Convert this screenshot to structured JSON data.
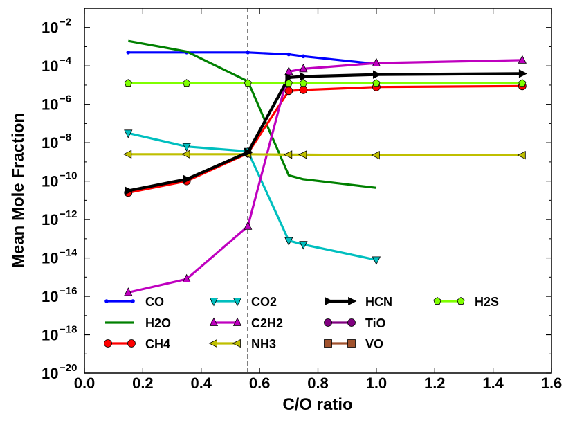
{
  "chart_data": {
    "type": "line",
    "title": "",
    "xlabel": "C/O ratio",
    "ylabel": "Mean Mole Fraction",
    "x_scale": "linear",
    "y_scale": "log",
    "xlim": [
      0.0,
      1.6
    ],
    "ylim_log10": [
      -20,
      -1
    ],
    "x_ticks": [
      0.0,
      0.2,
      0.4,
      0.6,
      0.8,
      1.0,
      1.2,
      1.4,
      1.6
    ],
    "x_tick_labels": [
      "0.0",
      "0.2",
      "0.4",
      "0.6",
      "0.8",
      "1.0",
      "1.2",
      "1.4",
      "1.6"
    ],
    "y_ticks_log10": [
      -20,
      -18,
      -16,
      -14,
      -12,
      -10,
      -8,
      -6,
      -4,
      -2
    ],
    "y_tick_labels": [
      {
        "base": "10",
        "exp": "−20"
      },
      {
        "base": "10",
        "exp": "−18"
      },
      {
        "base": "10",
        "exp": "−16"
      },
      {
        "base": "10",
        "exp": "−14"
      },
      {
        "base": "10",
        "exp": "−12"
      },
      {
        "base": "10",
        "exp": "−10"
      },
      {
        "base": "10",
        "exp": "−8"
      },
      {
        "base": "10",
        "exp": "−6"
      },
      {
        "base": "10",
        "exp": "−4"
      },
      {
        "base": "10",
        "exp": "−2"
      }
    ],
    "reference_line": {
      "x": 0.56,
      "style": "dashed",
      "color": "#000000"
    },
    "legend_placement": "lower-center",
    "series": [
      {
        "name": "CO",
        "color": "#0000ff",
        "marker": "dot",
        "x": [
          0.15,
          0.35,
          0.56,
          0.7,
          0.75,
          1.0
        ],
        "log10_y": [
          -3.3,
          -3.3,
          -3.3,
          -3.4,
          -3.5,
          -3.9
        ]
      },
      {
        "name": "H2O",
        "color": "#008000",
        "marker": "none",
        "x": [
          0.15,
          0.35,
          0.56,
          0.7,
          0.75,
          1.0
        ],
        "log10_y": [
          -2.7,
          -3.25,
          -4.8,
          -9.7,
          -9.9,
          -10.35
        ]
      },
      {
        "name": "CH4",
        "color": "#ff0000",
        "marker": "circle",
        "x": [
          0.15,
          0.35,
          0.56,
          0.7,
          0.75,
          1.0,
          1.5
        ],
        "log10_y": [
          -10.6,
          -10.0,
          -8.55,
          -5.3,
          -5.25,
          -5.1,
          -5.05
        ]
      },
      {
        "name": "CO2",
        "color": "#00bfbf",
        "marker": "triangle-down",
        "x": [
          0.15,
          0.35,
          0.56,
          0.7,
          0.75,
          1.0
        ],
        "log10_y": [
          -7.5,
          -8.2,
          -8.45,
          -13.1,
          -13.3,
          -14.1
        ]
      },
      {
        "name": "C2H2",
        "color": "#bf00bf",
        "marker": "triangle-up",
        "x": [
          0.15,
          0.35,
          0.56,
          0.7,
          0.75,
          1.0,
          1.5
        ],
        "log10_y": [
          -15.8,
          -15.1,
          -12.35,
          -4.3,
          -4.15,
          -3.85,
          -3.7
        ]
      },
      {
        "name": "NH3",
        "color": "#bfbf00",
        "marker": "triangle-left",
        "x": [
          0.15,
          0.35,
          0.56,
          0.7,
          0.75,
          1.0,
          1.5
        ],
        "log10_y": [
          -8.6,
          -8.6,
          -8.6,
          -8.62,
          -8.62,
          -8.65,
          -8.65
        ]
      },
      {
        "name": "HCN",
        "color": "#000000",
        "marker": "triangle-right",
        "x": [
          0.15,
          0.35,
          0.56,
          0.7,
          0.75,
          1.0,
          1.5
        ],
        "log10_y": [
          -10.5,
          -9.9,
          -8.5,
          -4.6,
          -4.55,
          -4.45,
          -4.4
        ]
      },
      {
        "name": "TiO",
        "color": "#800080",
        "marker": "circle",
        "x": [],
        "log10_y": []
      },
      {
        "name": "VO",
        "color": "#a0522d",
        "marker": "square",
        "x": [],
        "log10_y": []
      },
      {
        "name": "H2S",
        "color": "#7fff00",
        "marker": "pentagon",
        "x": [
          0.15,
          0.35,
          0.56,
          0.7,
          0.75,
          1.0,
          1.5
        ],
        "log10_y": [
          -4.9,
          -4.9,
          -4.9,
          -4.9,
          -4.9,
          -4.9,
          -4.9
        ]
      }
    ]
  }
}
